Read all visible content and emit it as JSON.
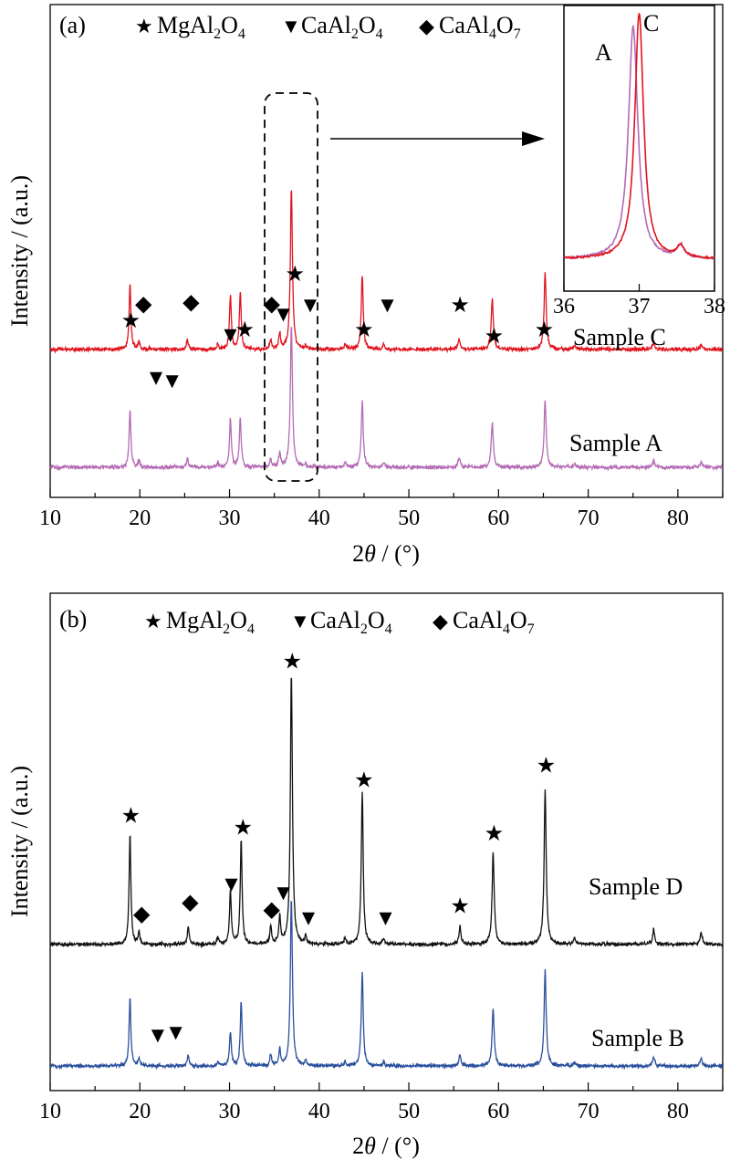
{
  "chart_data": [
    {
      "type": "line",
      "panel_label": "(a)",
      "xlabel_prefix": "2",
      "xlabel_theta": "θ",
      "xlabel_suffix": " / (°)",
      "ylabel": "Intensity / (a.u.)",
      "xlim": [
        10,
        85
      ],
      "xticks": [
        10,
        20,
        30,
        40,
        50,
        60,
        70,
        80
      ],
      "legend": [
        {
          "symbol": "★",
          "base": "MgAl",
          "sub1": "2",
          "mid": "O",
          "sub2": "4"
        },
        {
          "symbol": "▼",
          "base": "CaAl",
          "sub1": "2",
          "mid": "O",
          "sub2": "4"
        },
        {
          "symbol": "◆",
          "base": "CaAl",
          "sub1": "4",
          "mid": "O",
          "sub2": "7"
        }
      ],
      "series": [
        {
          "name": "Sample C",
          "color": "#e0141e",
          "offset": 1.9,
          "peak_scale": 1.0
        },
        {
          "name": "Sample A",
          "color": "#b46bb4",
          "offset": 0.0,
          "peak_scale": 0.88
        }
      ],
      "peaks": [
        {
          "x": 18.9,
          "h": 1.05,
          "w": 0.12
        },
        {
          "x": 19.9,
          "h": 0.12,
          "w": 0.12
        },
        {
          "x": 25.3,
          "h": 0.16,
          "w": 0.12
        },
        {
          "x": 28.7,
          "h": 0.08,
          "w": 0.12
        },
        {
          "x": 30.1,
          "h": 0.88,
          "w": 0.12
        },
        {
          "x": 31.2,
          "h": 0.92,
          "w": 0.12
        },
        {
          "x": 34.6,
          "h": 0.14,
          "w": 0.12
        },
        {
          "x": 35.6,
          "h": 0.26,
          "w": 0.12
        },
        {
          "x": 36.9,
          "h": 2.6,
          "w": 0.14
        },
        {
          "x": 38.5,
          "h": 0.06,
          "w": 0.12
        },
        {
          "x": 42.9,
          "h": 0.1,
          "w": 0.12
        },
        {
          "x": 44.8,
          "h": 1.2,
          "w": 0.13
        },
        {
          "x": 47.2,
          "h": 0.08,
          "w": 0.12
        },
        {
          "x": 55.6,
          "h": 0.18,
          "w": 0.13
        },
        {
          "x": 59.3,
          "h": 0.82,
          "w": 0.14
        },
        {
          "x": 65.2,
          "h": 1.22,
          "w": 0.14
        },
        {
          "x": 68.5,
          "h": 0.06,
          "w": 0.14
        },
        {
          "x": 77.3,
          "h": 0.12,
          "w": 0.14
        },
        {
          "x": 82.6,
          "h": 0.08,
          "w": 0.14
        }
      ],
      "markers": [
        {
          "symbol": "★",
          "x": 19.0,
          "yrel": 2.25
        },
        {
          "symbol": "◆",
          "x": 20.4,
          "yrel": 2.52
        },
        {
          "symbol": "▼",
          "x": 21.8,
          "yrel": 1.33
        },
        {
          "symbol": "▼",
          "x": 23.6,
          "yrel": 1.28
        },
        {
          "symbol": "◆",
          "x": 25.7,
          "yrel": 2.55
        },
        {
          "symbol": "▼",
          "x": 30.1,
          "yrel": 2.02
        },
        {
          "symbol": "★",
          "x": 31.7,
          "yrel": 2.1
        },
        {
          "symbol": "◆",
          "x": 34.7,
          "yrel": 2.52
        },
        {
          "symbol": "▼",
          "x": 36.0,
          "yrel": 2.35
        },
        {
          "symbol": "★",
          "x": 37.3,
          "yrel": 3.0
        },
        {
          "symbol": "▼",
          "x": 39.0,
          "yrel": 2.5
        },
        {
          "symbol": "★",
          "x": 45.0,
          "yrel": 2.1
        },
        {
          "symbol": "▼",
          "x": 47.6,
          "yrel": 2.5
        },
        {
          "symbol": "★",
          "x": 55.7,
          "yrel": 2.5
        },
        {
          "symbol": "★",
          "x": 59.5,
          "yrel": 2.0
        },
        {
          "symbol": "★",
          "x": 65.1,
          "yrel": 2.1
        }
      ],
      "sample_labels": [
        "Sample C",
        "Sample A"
      ],
      "inset": {
        "xlim": [
          36,
          38
        ],
        "xticks": [
          36,
          37,
          38
        ],
        "labels": [
          "A",
          "C"
        ],
        "series": [
          {
            "name": "A",
            "color": "#b46bb4",
            "center": 36.92,
            "width": 0.075,
            "height": 1.0
          },
          {
            "name": "C",
            "color": "#e0141e",
            "center": 37.0,
            "width": 0.07,
            "height": 1.06
          }
        ]
      }
    },
    {
      "type": "line",
      "panel_label": "(b)",
      "xlabel_prefix": "2",
      "xlabel_theta": "θ",
      "xlabel_suffix": " / (°)",
      "ylabel": "Intensity / (a.u.)",
      "xlim": [
        10,
        85
      ],
      "xticks": [
        10,
        20,
        30,
        40,
        50,
        60,
        70,
        80
      ],
      "legend": [
        {
          "symbol": "★",
          "base": "MgAl",
          "sub1": "2",
          "mid": "O",
          "sub2": "4"
        },
        {
          "symbol": "▼",
          "base": "CaAl",
          "sub1": "2",
          "mid": "O",
          "sub2": "4"
        },
        {
          "symbol": "◆",
          "base": "CaAl",
          "sub1": "4",
          "mid": "O",
          "sub2": "7"
        }
      ],
      "series": [
        {
          "name": "Sample D",
          "color": "#111111",
          "offset": 2.05,
          "peak_scale": 1.0
        },
        {
          "name": "Sample B",
          "color": "#2a4f9c",
          "offset": 0.0,
          "peak_scale": 0.62
        }
      ],
      "peaks": [
        {
          "x": 18.9,
          "h": 1.85,
          "w": 0.12
        },
        {
          "x": 19.9,
          "h": 0.2,
          "w": 0.12
        },
        {
          "x": 25.4,
          "h": 0.3,
          "w": 0.12
        },
        {
          "x": 28.7,
          "h": 0.12,
          "w": 0.12
        },
        {
          "x": 30.1,
          "h": 0.9,
          "w": 0.12
        },
        {
          "x": 31.3,
          "h": 1.75,
          "w": 0.12
        },
        {
          "x": 34.6,
          "h": 0.3,
          "w": 0.12
        },
        {
          "x": 35.6,
          "h": 0.45,
          "w": 0.12
        },
        {
          "x": 36.9,
          "h": 4.55,
          "w": 0.14
        },
        {
          "x": 38.5,
          "h": 0.12,
          "w": 0.12
        },
        {
          "x": 42.9,
          "h": 0.1,
          "w": 0.12
        },
        {
          "x": 44.8,
          "h": 2.55,
          "w": 0.13
        },
        {
          "x": 47.2,
          "h": 0.1,
          "w": 0.12
        },
        {
          "x": 55.7,
          "h": 0.3,
          "w": 0.13
        },
        {
          "x": 59.4,
          "h": 1.55,
          "w": 0.14
        },
        {
          "x": 65.2,
          "h": 2.6,
          "w": 0.14
        },
        {
          "x": 68.5,
          "h": 0.1,
          "w": 0.14
        },
        {
          "x": 77.3,
          "h": 0.25,
          "w": 0.14
        },
        {
          "x": 82.6,
          "h": 0.2,
          "w": 0.14
        }
      ],
      "markers": [
        {
          "symbol": "★",
          "x": 19.0,
          "yrel": 4.1
        },
        {
          "symbol": "◆",
          "x": 20.2,
          "yrel": 2.45
        },
        {
          "symbol": "▼",
          "x": 22.0,
          "yrel": 0.4
        },
        {
          "symbol": "▼",
          "x": 24.0,
          "yrel": 0.45
        },
        {
          "symbol": "◆",
          "x": 25.6,
          "yrel": 2.65
        },
        {
          "symbol": "▼",
          "x": 30.2,
          "yrel": 2.95
        },
        {
          "symbol": "★",
          "x": 31.5,
          "yrel": 3.9
        },
        {
          "symbol": "◆",
          "x": 34.7,
          "yrel": 2.52
        },
        {
          "symbol": "▼",
          "x": 36.0,
          "yrel": 2.8
        },
        {
          "symbol": "★",
          "x": 37.0,
          "yrel": 6.7
        },
        {
          "symbol": "▼",
          "x": 38.8,
          "yrel": 2.38
        },
        {
          "symbol": "★",
          "x": 45.0,
          "yrel": 4.7
        },
        {
          "symbol": "▼",
          "x": 47.4,
          "yrel": 2.38
        },
        {
          "symbol": "★",
          "x": 55.7,
          "yrel": 2.58
        },
        {
          "symbol": "★",
          "x": 59.5,
          "yrel": 3.8
        },
        {
          "symbol": "★",
          "x": 65.3,
          "yrel": 4.95
        }
      ],
      "sample_labels": [
        "Sample D",
        "Sample B"
      ]
    }
  ]
}
